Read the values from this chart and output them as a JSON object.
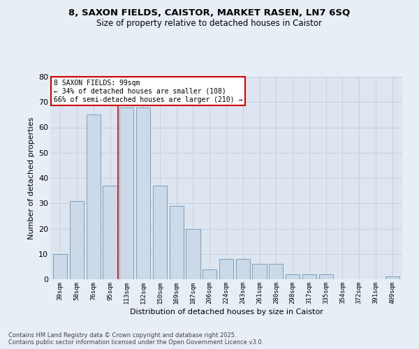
{
  "title_line1": "8, SAXON FIELDS, CAISTOR, MARKET RASEN, LN7 6SQ",
  "title_line2": "Size of property relative to detached houses in Caistor",
  "xlabel": "Distribution of detached houses by size in Caistor",
  "ylabel": "Number of detached properties",
  "categories": [
    "39sqm",
    "58sqm",
    "76sqm",
    "95sqm",
    "113sqm",
    "132sqm",
    "150sqm",
    "169sqm",
    "187sqm",
    "206sqm",
    "224sqm",
    "243sqm",
    "261sqm",
    "280sqm",
    "298sqm",
    "317sqm",
    "335sqm",
    "354sqm",
    "372sqm",
    "391sqm",
    "409sqm"
  ],
  "values": [
    10,
    31,
    65,
    37,
    68,
    68,
    37,
    29,
    20,
    4,
    8,
    8,
    6,
    6,
    2,
    2,
    2,
    0,
    0,
    0,
    1
  ],
  "bar_color": "#ccd9e8",
  "bar_edge_color": "#7ba0be",
  "red_line_x": 3.5,
  "annotation_text": "8 SAXON FIELDS: 99sqm\n← 34% of detached houses are smaller (108)\n66% of semi-detached houses are larger (210) →",
  "annotation_box_color": "#ffffff",
  "annotation_box_edge": "#cc0000",
  "annotation_text_color": "#000000",
  "red_line_color": "#cc0000",
  "grid_color": "#c8d0dc",
  "background_color": "#e8eef5",
  "plot_bg_color": "#dce5f0",
  "ylim": [
    0,
    80
  ],
  "yticks": [
    0,
    10,
    20,
    30,
    40,
    50,
    60,
    70,
    80
  ],
  "footer_line1": "Contains HM Land Registry data © Crown copyright and database right 2025.",
  "footer_line2": "Contains public sector information licensed under the Open Government Licence v3.0."
}
